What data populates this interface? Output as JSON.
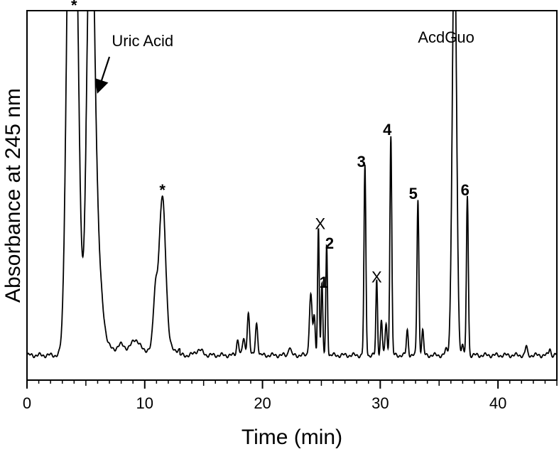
{
  "chart_data": {
    "type": "line",
    "title": "",
    "xlabel": "Time (min)",
    "ylabel": "Absorbance at 245 nm",
    "xlim": [
      0,
      45
    ],
    "ylim": [
      0,
      1
    ],
    "x_ticks": [
      0,
      10,
      20,
      30,
      40
    ],
    "x_tick_labels": [
      "0",
      "10",
      "20",
      "30",
      "40"
    ],
    "y_ticks_visible": false,
    "grid": false,
    "legend": "none",
    "line_color": "#000000",
    "baseline": 0.03,
    "peaks": [
      {
        "x": 3.6,
        "h": 1.2,
        "w": 0.28
      },
      {
        "x": 4.1,
        "h": 1.2,
        "w": 0.3
      },
      {
        "x": 5.4,
        "h": 1.2,
        "w": 0.32
      },
      {
        "x": 5.9,
        "h": 0.25,
        "w": 0.45
      },
      {
        "x": 8.0,
        "h": 0.015,
        "w": 0.3
      },
      {
        "x": 9.2,
        "h": 0.03,
        "w": 0.3
      },
      {
        "x": 10.9,
        "h": 0.15,
        "w": 0.18
      },
      {
        "x": 11.5,
        "h": 0.43,
        "w": 0.28
      },
      {
        "x": 14.6,
        "h": 0.015,
        "w": 0.3
      },
      {
        "x": 17.9,
        "h": 0.045,
        "w": 0.1
      },
      {
        "x": 18.4,
        "h": 0.045,
        "w": 0.1
      },
      {
        "x": 18.8,
        "h": 0.12,
        "w": 0.1
      },
      {
        "x": 19.5,
        "h": 0.09,
        "w": 0.1
      },
      {
        "x": 22.3,
        "h": 0.025,
        "w": 0.1
      },
      {
        "x": 24.1,
        "h": 0.17,
        "w": 0.12
      },
      {
        "x": 24.4,
        "h": 0.1,
        "w": 0.08
      },
      {
        "x": 24.75,
        "h": 0.36,
        "w": 0.07
      },
      {
        "x": 25.05,
        "h": 0.2,
        "w": 0.07
      },
      {
        "x": 25.45,
        "h": 0.31,
        "w": 0.07
      },
      {
        "x": 28.7,
        "h": 0.53,
        "w": 0.08
      },
      {
        "x": 29.7,
        "h": 0.21,
        "w": 0.07
      },
      {
        "x": 30.1,
        "h": 0.1,
        "w": 0.08
      },
      {
        "x": 30.5,
        "h": 0.09,
        "w": 0.08
      },
      {
        "x": 30.9,
        "h": 0.62,
        "w": 0.08
      },
      {
        "x": 32.3,
        "h": 0.07,
        "w": 0.08
      },
      {
        "x": 33.2,
        "h": 0.44,
        "w": 0.08
      },
      {
        "x": 33.6,
        "h": 0.07,
        "w": 0.08
      },
      {
        "x": 35.6,
        "h": 0.015,
        "w": 0.1
      },
      {
        "x": 36.3,
        "h": 1.2,
        "w": 0.18
      },
      {
        "x": 37.0,
        "h": 0.03,
        "w": 0.08
      },
      {
        "x": 37.4,
        "h": 0.45,
        "w": 0.08
      },
      {
        "x": 42.4,
        "h": 0.025,
        "w": 0.08
      },
      {
        "x": 44.4,
        "h": 0.02,
        "w": 0.08
      }
    ],
    "annotations": [
      {
        "text": "*",
        "x": 4.0,
        "y": 1.0,
        "bold": true
      },
      {
        "text": "Uric Acid",
        "x": 7.2,
        "y": 0.9,
        "bold": false
      },
      {
        "text": "AcdGuo",
        "x": 33.2,
        "y": 0.91,
        "bold": false
      },
      {
        "text": "*",
        "x": 11.5,
        "y": 0.48,
        "bold": true
      },
      {
        "text": "X",
        "x": 24.9,
        "y": 0.385,
        "bold": false
      },
      {
        "text": "1",
        "x": 25.2,
        "y": 0.22,
        "bold": true
      },
      {
        "text": "2",
        "x": 25.7,
        "y": 0.33,
        "bold": true
      },
      {
        "text": "3",
        "x": 28.4,
        "y": 0.56,
        "bold": true
      },
      {
        "text": "X",
        "x": 29.7,
        "y": 0.235,
        "bold": false
      },
      {
        "text": "4",
        "x": 30.6,
        "y": 0.65,
        "bold": true
      },
      {
        "text": "5",
        "x": 32.8,
        "y": 0.47,
        "bold": true
      },
      {
        "text": "6",
        "x": 37.2,
        "y": 0.48,
        "bold": true
      }
    ],
    "arrow": {
      "from": [
        7.0,
        0.87
      ],
      "to": [
        6.0,
        0.77
      ]
    }
  }
}
